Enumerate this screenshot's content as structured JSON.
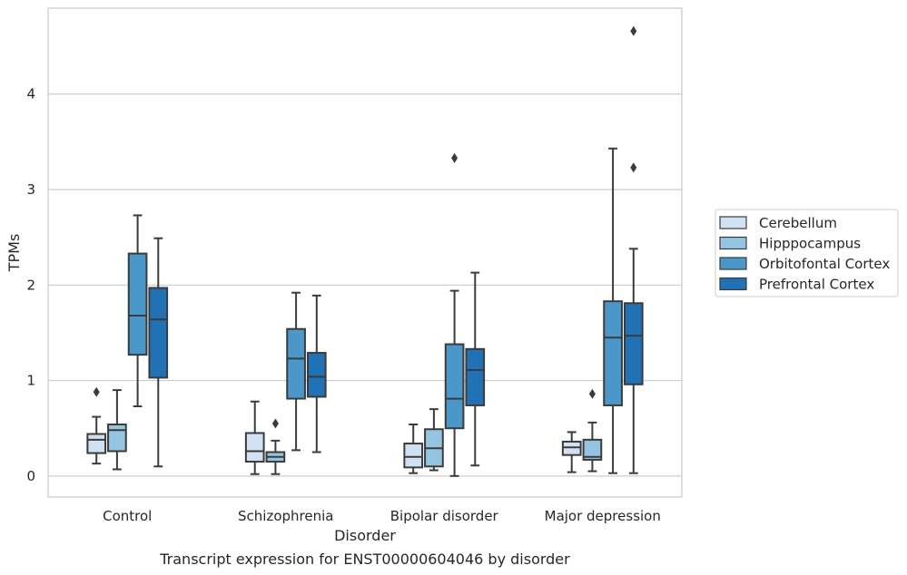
{
  "chart_data": {
    "type": "box",
    "caption": "Transcript expression for ENST00000604046 by disorder",
    "xlabel": "Disorder",
    "ylabel": "TPMs",
    "ylim": [
      -0.22,
      4.9
    ],
    "yticks": [
      0,
      1,
      2,
      3,
      4
    ],
    "grid": "horizontal",
    "legend_position": "right",
    "categories": [
      "Control",
      "Schizophrenia",
      "Bipolar disorder",
      "Major depression"
    ],
    "series": [
      {
        "name": "Cerebellum",
        "color": "#d0e1f2",
        "boxes": [
          {
            "whisker_low": 0.13,
            "q1": 0.24,
            "median": 0.38,
            "q3": 0.44,
            "whisker_high": 0.62,
            "outliers": [
              0.88
            ]
          },
          {
            "whisker_low": 0.02,
            "q1": 0.15,
            "median": 0.26,
            "q3": 0.45,
            "whisker_high": 0.78,
            "outliers": []
          },
          {
            "whisker_low": 0.03,
            "q1": 0.09,
            "median": 0.2,
            "q3": 0.34,
            "whisker_high": 0.54,
            "outliers": []
          },
          {
            "whisker_low": 0.04,
            "q1": 0.22,
            "median": 0.3,
            "q3": 0.36,
            "whisker_high": 0.46,
            "outliers": []
          }
        ]
      },
      {
        "name": "Hipppocampus",
        "color": "#94c4df",
        "boxes": [
          {
            "whisker_low": 0.07,
            "q1": 0.26,
            "median": 0.48,
            "q3": 0.54,
            "whisker_high": 0.9,
            "outliers": []
          },
          {
            "whisker_low": 0.02,
            "q1": 0.15,
            "median": 0.2,
            "q3": 0.25,
            "whisker_high": 0.37,
            "outliers": [
              0.55
            ]
          },
          {
            "whisker_low": 0.06,
            "q1": 0.1,
            "median": 0.29,
            "q3": 0.49,
            "whisker_high": 0.7,
            "outliers": []
          },
          {
            "whisker_low": 0.05,
            "q1": 0.17,
            "median": 0.2,
            "q3": 0.38,
            "whisker_high": 0.56,
            "outliers": [
              0.86
            ]
          }
        ]
      },
      {
        "name": "Orbitofontal Cortex",
        "color": "#4a98c9",
        "boxes": [
          {
            "whisker_low": 0.73,
            "q1": 1.27,
            "median": 1.68,
            "q3": 2.33,
            "whisker_high": 2.73,
            "outliers": []
          },
          {
            "whisker_low": 0.27,
            "q1": 0.81,
            "median": 1.23,
            "q3": 1.54,
            "whisker_high": 1.92,
            "outliers": []
          },
          {
            "whisker_low": 0.0,
            "q1": 0.5,
            "median": 0.81,
            "q3": 1.38,
            "whisker_high": 1.94,
            "outliers": [
              3.33
            ]
          },
          {
            "whisker_low": 0.03,
            "q1": 0.74,
            "median": 1.45,
            "q3": 1.83,
            "whisker_high": 3.43,
            "outliers": []
          }
        ]
      },
      {
        "name": "Prefrontal Cortex",
        "color": "#2171b5",
        "boxes": [
          {
            "whisker_low": 0.1,
            "q1": 1.03,
            "median": 1.64,
            "q3": 1.97,
            "whisker_high": 2.49,
            "outliers": []
          },
          {
            "whisker_low": 0.25,
            "q1": 0.83,
            "median": 1.04,
            "q3": 1.29,
            "whisker_high": 1.89,
            "outliers": []
          },
          {
            "whisker_low": 0.11,
            "q1": 0.74,
            "median": 1.11,
            "q3": 1.33,
            "whisker_high": 2.13,
            "outliers": []
          },
          {
            "whisker_low": 0.03,
            "q1": 0.96,
            "median": 1.47,
            "q3": 1.81,
            "whisker_high": 2.38,
            "outliers": [
              4.66,
              3.23
            ]
          }
        ]
      }
    ]
  }
}
